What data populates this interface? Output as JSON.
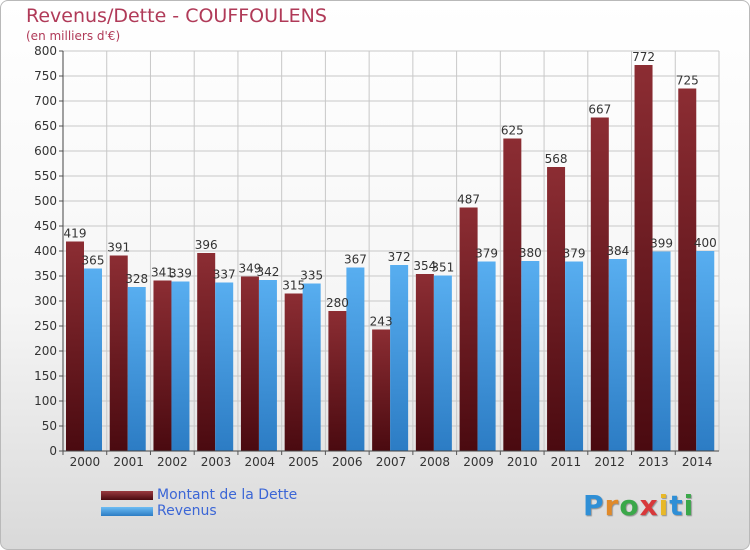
{
  "header": {
    "title": "Revenus/Dette - COUFFOULENS",
    "subtitle": "(en milliers d'€)"
  },
  "chart_data": {
    "type": "bar",
    "title": "Revenus/Dette - COUFFOULENS",
    "subtitle": "(en milliers d'€)",
    "xlabel": "",
    "ylabel": "",
    "ylim": [
      0,
      800
    ],
    "yticks": [
      0,
      50,
      100,
      150,
      200,
      250,
      300,
      350,
      400,
      450,
      500,
      550,
      600,
      650,
      700,
      750,
      800
    ],
    "grid": true,
    "legend_position": "bottom-left",
    "categories": [
      "2000",
      "2001",
      "2002",
      "2003",
      "2004",
      "2005",
      "2006",
      "2007",
      "2008",
      "2009",
      "2010",
      "2011",
      "2012",
      "2013",
      "2014"
    ],
    "series": [
      {
        "name": "Montant de la Dette",
        "color": "#7a1e26",
        "values": [
          419,
          391,
          341,
          396,
          349,
          315,
          280,
          243,
          354,
          487,
          625,
          568,
          667,
          772,
          725
        ]
      },
      {
        "name": "Revenus",
        "color": "#4a9fe0",
        "values": [
          365,
          328,
          339,
          337,
          342,
          335,
          367,
          372,
          351,
          379,
          380,
          379,
          384,
          399,
          400
        ]
      }
    ]
  },
  "legend": {
    "items": [
      {
        "label": "Montant de la Dette",
        "color": "#7a1e26"
      },
      {
        "label": "Revenus",
        "color": "#4a9fe0"
      }
    ]
  },
  "brand": {
    "letters": [
      {
        "ch": "P",
        "color": "#2f8fd6"
      },
      {
        "ch": "r",
        "color": "#e08a2a"
      },
      {
        "ch": "o",
        "color": "#3ba84a"
      },
      {
        "ch": "x",
        "color": "#d8383a"
      },
      {
        "ch": "i",
        "color": "#e8b828"
      },
      {
        "ch": "t",
        "color": "#2f8fd6"
      },
      {
        "ch": "i",
        "color": "#3ba84a"
      }
    ]
  }
}
